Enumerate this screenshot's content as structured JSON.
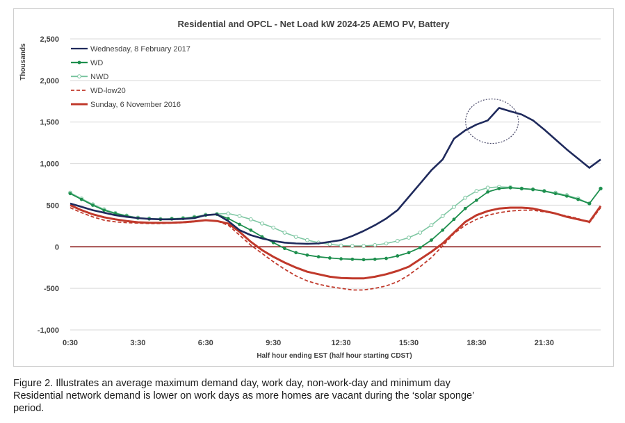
{
  "chart_data": {
    "type": "line",
    "title": "Residential and OPCL - Net Load kW 2024-25 AEMO PV, Battery",
    "xlabel": "Half hour ending EST (half hour starting CDST)",
    "ylabel": "Thousands",
    "x_tick_labels": [
      "0:30",
      "3:30",
      "6:30",
      "9:30",
      "12:30",
      "15:30",
      "18:30",
      "21:30"
    ],
    "x_tick_indices": [
      0,
      6,
      12,
      18,
      24,
      30,
      36,
      42
    ],
    "x_count": 48,
    "ylim": [
      -1000,
      2500
    ],
    "y_ticks": [
      2500,
      2000,
      1500,
      1000,
      500,
      0,
      -500,
      -1000
    ],
    "y_tick_labels": [
      "2,500",
      "2,000",
      "1,500",
      "1,000",
      "500",
      "0",
      "-500",
      "-1,000"
    ],
    "legend_position": "top-left",
    "series": [
      {
        "name": "Wednesday, 8 February 2017",
        "color": "#1f2a5c",
        "style": "solid",
        "values": [
          520,
          480,
          440,
          410,
          380,
          360,
          345,
          335,
          330,
          330,
          335,
          345,
          380,
          390,
          310,
          200,
          140,
          100,
          70,
          50,
          40,
          35,
          40,
          60,
          80,
          130,
          190,
          260,
          340,
          440,
          600,
          760,
          920,
          1050,
          1300,
          1400,
          1470,
          1520,
          1670,
          1630,
          1590,
          1520,
          1410,
          1290,
          1170,
          1060,
          950,
          1050
        ]
      },
      {
        "name": "WD",
        "color": "#1e8f4e",
        "style": "solid-dot",
        "values": [
          640,
          570,
          500,
          440,
          400,
          370,
          345,
          335,
          330,
          335,
          340,
          355,
          380,
          390,
          340,
          270,
          200,
          120,
          50,
          -20,
          -70,
          -100,
          -120,
          -135,
          -145,
          -150,
          -155,
          -150,
          -140,
          -110,
          -70,
          -10,
          80,
          200,
          330,
          460,
          560,
          660,
          700,
          710,
          700,
          690,
          670,
          640,
          610,
          570,
          520,
          700
        ]
      },
      {
        "name": "NWD",
        "color": "#7fc7a3",
        "style": "solid-circle",
        "values": [
          650,
          580,
          510,
          450,
          405,
          375,
          350,
          340,
          335,
          338,
          345,
          360,
          385,
          395,
          400,
          370,
          330,
          280,
          230,
          170,
          120,
          80,
          50,
          30,
          15,
          10,
          10,
          20,
          40,
          70,
          110,
          170,
          260,
          370,
          480,
          590,
          670,
          710,
          720,
          715,
          700,
          690,
          670,
          650,
          620,
          580,
          520,
          700
        ]
      },
      {
        "name": "WD-low20",
        "color": "#c0392b",
        "style": "dashed",
        "values": [
          470,
          410,
          360,
          320,
          300,
          290,
          285,
          280,
          280,
          285,
          290,
          300,
          320,
          310,
          260,
          140,
          20,
          -80,
          -180,
          -270,
          -350,
          -410,
          -450,
          -480,
          -500,
          -520,
          -520,
          -500,
          -470,
          -420,
          -340,
          -240,
          -130,
          10,
          160,
          260,
          330,
          380,
          410,
          430,
          440,
          440,
          420,
          400,
          370,
          340,
          290,
          470
        ]
      },
      {
        "name": "Sunday, 6 November 2016",
        "color": "#c0392b",
        "style": "solid-thick",
        "values": [
          500,
          440,
          390,
          355,
          330,
          310,
          295,
          290,
          288,
          290,
          295,
          305,
          320,
          310,
          280,
          180,
          60,
          -40,
          -120,
          -190,
          -250,
          -300,
          -330,
          -360,
          -375,
          -380,
          -380,
          -360,
          -330,
          -290,
          -240,
          -150,
          -60,
          40,
          170,
          300,
          380,
          430,
          460,
          470,
          470,
          460,
          430,
          400,
          360,
          330,
          300,
          490
        ]
      }
    ],
    "annotations": [
      {
        "type": "ellipse",
        "target_index": 37,
        "target_value": 1510,
        "style": "dotted"
      }
    ]
  },
  "caption": {
    "line1": "Figure 2. Illustrates an average maximum demand day, work day, non-work-day and minimum day",
    "line2": "Residential network demand is lower on work days as more homes are vacant during the ‘solar sponge’",
    "line3": "period."
  }
}
